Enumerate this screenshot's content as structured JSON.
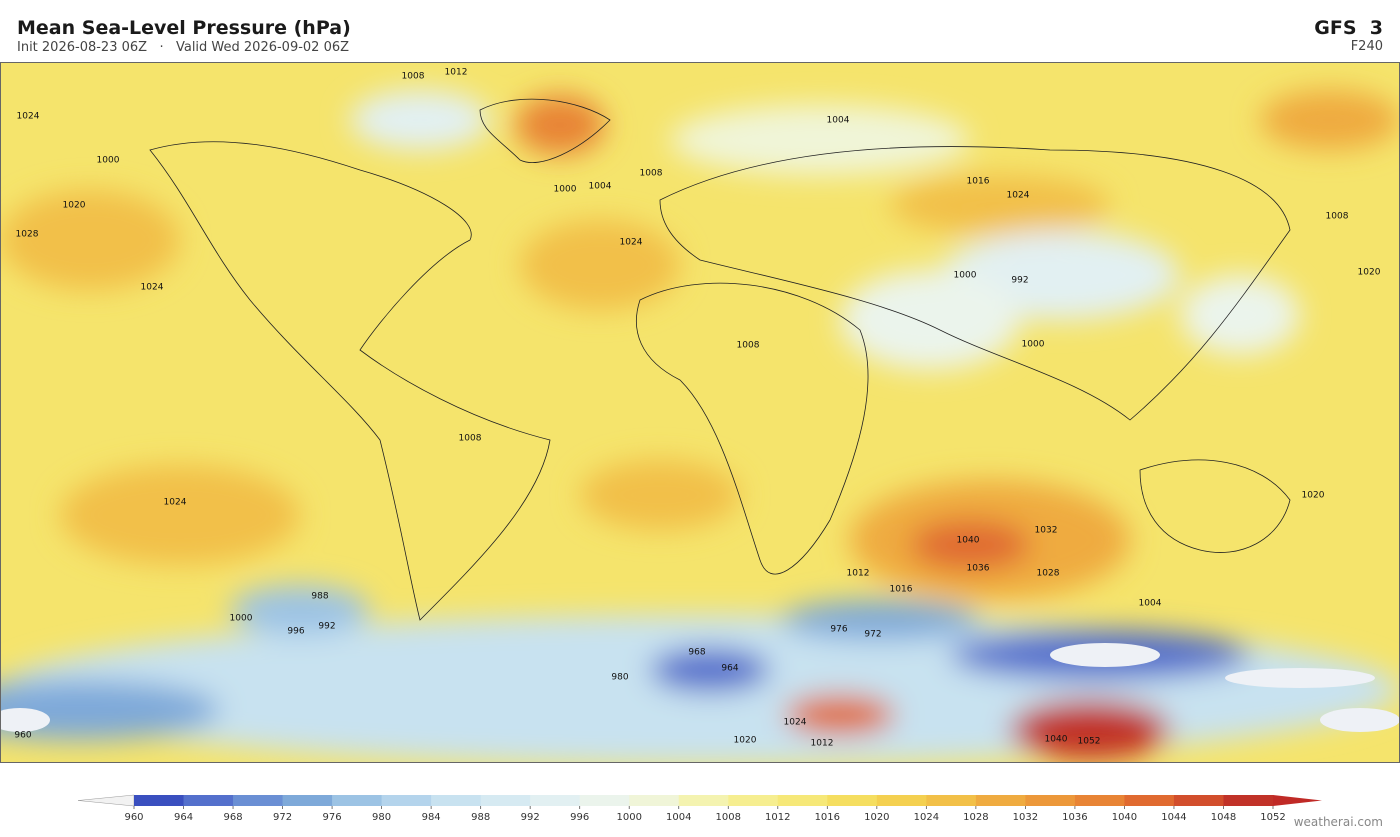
{
  "header": {
    "title": "Mean Sea-Level Pressure  (hPa)",
    "subtitle": "Init 2026-08-23 06Z   ·   Valid Wed 2026-09-02 06Z",
    "model": "GFS  3",
    "forecast_hour": "F240"
  },
  "map": {
    "contour_labels": [
      "1024",
      "1000",
      "1008",
      "1012",
      "1028",
      "1024",
      "1020",
      "1024",
      "1000",
      "1004",
      "1008",
      "1004",
      "1016",
      "1024",
      "992",
      "1000",
      "1000",
      "1008",
      "1008",
      "1020",
      "1020",
      "1024",
      "1008",
      "1040",
      "1036",
      "1032",
      "1028",
      "1016",
      "1012",
      "1004",
      "988",
      "996",
      "992",
      "1000",
      "968",
      "972",
      "976",
      "980",
      "1040",
      "1052",
      "1024",
      "1020",
      "1012",
      "960",
      "964"
    ]
  },
  "colorbar": {
    "ticks": [
      960,
      964,
      968,
      972,
      976,
      980,
      984,
      988,
      992,
      996,
      1000,
      1004,
      1008,
      1012,
      1016,
      1020,
      1024,
      1028,
      1032,
      1036,
      1040,
      1044,
      1048,
      1052
    ],
    "colors": [
      "#f2f2f2",
      "#3a4fbf",
      "#5470cc",
      "#6a8fd4",
      "#7ea9d9",
      "#9cc3e4",
      "#b4d4ec",
      "#c8e2f0",
      "#d6eaf2",
      "#e2f0f2",
      "#ebf4ec",
      "#f0f5d8",
      "#f4f3b0",
      "#f6ee90",
      "#f6e878",
      "#f5de60",
      "#f4d050",
      "#f2c048",
      "#efab40",
      "#ec983a",
      "#e88435",
      "#e06a30",
      "#d24e2c",
      "#c13228",
      "#c02a26"
    ]
  },
  "footer": {
    "watermark": "weatherai.com"
  }
}
